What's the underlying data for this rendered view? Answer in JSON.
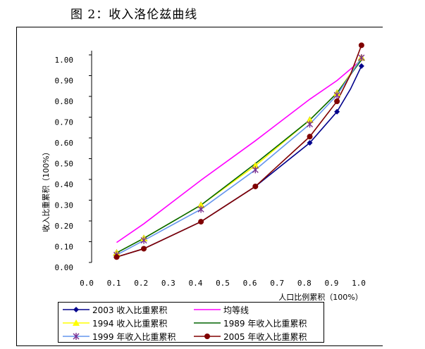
{
  "figure": {
    "title": "图 2：收入洛伦兹曲线"
  },
  "chart_data": {
    "type": "line",
    "xlabel": "人口比例累积（100%）",
    "ylabel": "收入比重累积（100%）",
    "xlim": [
      0,
      1.0
    ],
    "ylim": [
      0,
      1.0
    ],
    "x_ticks": [
      "0.0",
      "0.1",
      "0.2",
      "0.3",
      "0.4",
      "0.5",
      "0.6",
      "0.7",
      "0.8",
      "0.9",
      "1.0"
    ],
    "y_ticks": [
      "0.00",
      "0.10",
      "0.20",
      "0.30",
      "0.40",
      "0.50",
      "0.60",
      "0.70",
      "0.80",
      "0.90",
      "1.00"
    ],
    "grid": false,
    "legend_position": "bottom",
    "series": [
      {
        "name": "2003 收入比重累积",
        "color": "#00008b",
        "marker": "diamond",
        "x": [
          0.11,
          0.21,
          0.42,
          0.62,
          0.82,
          0.92,
          0.97,
          1.01
        ],
        "y": [
          0.05,
          0.09,
          0.22,
          0.39,
          0.6,
          0.75,
          0.86,
          0.97
        ]
      },
      {
        "name": "均等线",
        "color": "#ff00ff",
        "marker": "none",
        "x": [
          0.11,
          0.21,
          0.42,
          0.62,
          0.82,
          0.92,
          1.01
        ],
        "y": [
          0.12,
          0.21,
          0.42,
          0.61,
          0.81,
          0.9,
          1.0
        ]
      },
      {
        "name": "1994 收入比重累积",
        "color": "#ffff00",
        "marker": "triangle",
        "x": [
          0.11,
          0.21,
          0.42,
          0.62,
          0.82,
          0.92,
          1.01
        ],
        "y": [
          0.07,
          0.14,
          0.3,
          0.49,
          0.71,
          0.84,
          1.01
        ]
      },
      {
        "name": "1989 年收入比重累积",
        "color": "#006400",
        "marker": "none",
        "x": [
          0.11,
          0.21,
          0.42,
          0.62,
          0.82,
          0.92,
          1.01
        ],
        "y": [
          0.07,
          0.14,
          0.3,
          0.5,
          0.71,
          0.84,
          1.0
        ]
      },
      {
        "name": "1999 年收入比重累积",
        "color": "#6495ed",
        "marker": "asterisk",
        "x": [
          0.11,
          0.21,
          0.42,
          0.62,
          0.82,
          0.92,
          1.01
        ],
        "y": [
          0.06,
          0.13,
          0.28,
          0.47,
          0.69,
          0.83,
          1.01
        ]
      },
      {
        "name": "2005 年收入比重累积",
        "color": "#800000",
        "marker": "circle",
        "x": [
          0.11,
          0.21,
          0.42,
          0.62,
          0.82,
          0.92,
          0.97,
          1.01
        ],
        "y": [
          0.05,
          0.09,
          0.22,
          0.39,
          0.63,
          0.8,
          0.93,
          1.07
        ]
      }
    ]
  }
}
